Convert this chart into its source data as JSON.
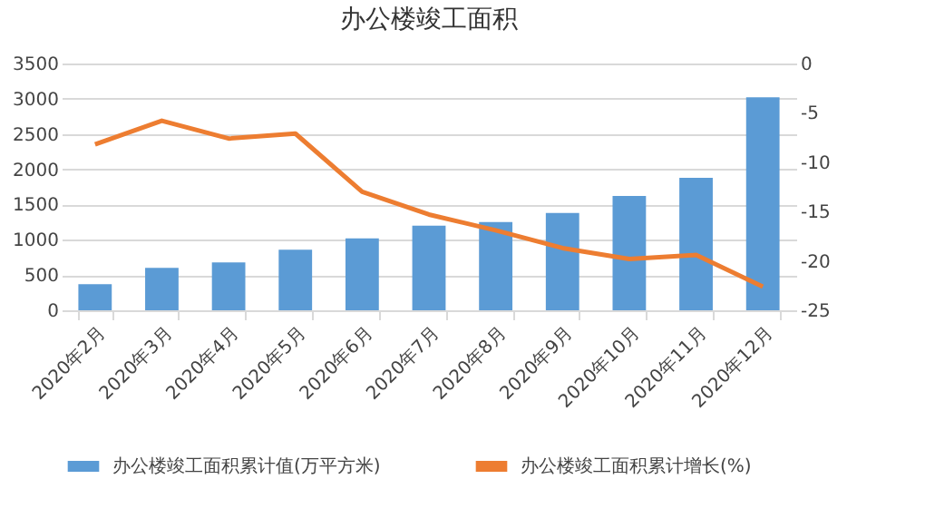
{
  "chart_data": {
    "type": "bar",
    "title": "办公楼竣工面积",
    "categories": [
      "2020年2月",
      "2020年3月",
      "2020年4月",
      "2020年5月",
      "2020年6月",
      "2020年7月",
      "2020年8月",
      "2020年9月",
      "2020年10月",
      "2020年11月",
      "2020年12月"
    ],
    "series": [
      {
        "name": "办公楼竣工面积累计值(万平方米)",
        "color": "#5b9bd5",
        "values": [
          370,
          600,
          680,
          860,
          1020,
          1200,
          1250,
          1380,
          1620,
          1880,
          3020
        ]
      },
      {
        "name": "办公楼竣工面积累计增长(%)",
        "type": "line",
        "axis": "y2",
        "color": "#ed7d31",
        "values": [
          -8.2,
          -5.8,
          -7.6,
          -7.1,
          -13,
          -15.3,
          -16.9,
          -18.7,
          -19.8,
          -19.4,
          -22.6
        ]
      }
    ],
    "ylim": [
      0,
      3500
    ],
    "yticks": [
      0,
      500,
      1000,
      1500,
      2000,
      2500,
      3000,
      3500
    ],
    "y2lim": [
      -25,
      0
    ],
    "y2ticks": [
      -25,
      -20,
      -15,
      -10,
      -5,
      0
    ],
    "grid": "y",
    "legend": "bottom",
    "marker": "none",
    "line_style": "solid"
  }
}
